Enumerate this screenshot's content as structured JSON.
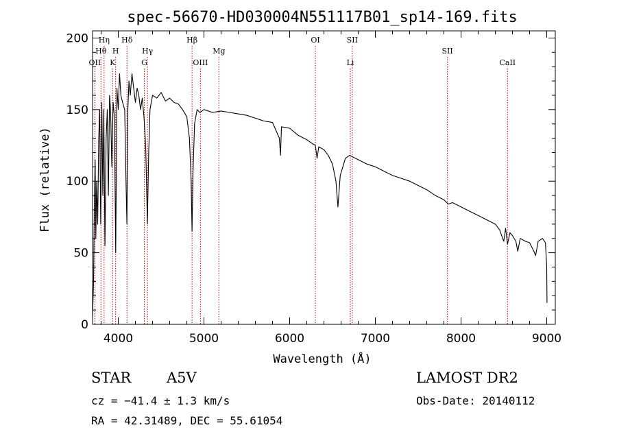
{
  "chart_data": {
    "type": "line",
    "title": "spec-56670-HD030004N551117B01_sp14-169.fits",
    "xlabel": "Wavelength (Å)",
    "ylabel": "Flux (relative)",
    "xlim": [
      3700,
      9100
    ],
    "ylim": [
      0,
      205
    ],
    "xticks": [
      4000,
      5000,
      6000,
      7000,
      8000,
      9000
    ],
    "yticks": [
      0,
      50,
      100,
      150,
      200
    ],
    "line_color": "#000000",
    "marker_color": "#cc0000",
    "series": [
      {
        "points": [
          [
            3700,
            5
          ],
          [
            3712,
            30
          ],
          [
            3720,
            80
          ],
          [
            3730,
            115
          ],
          [
            3738,
            60
          ],
          [
            3748,
            100
          ],
          [
            3760,
            70
          ],
          [
            3772,
            130
          ],
          [
            3783,
            150
          ],
          [
            3795,
            70
          ],
          [
            3808,
            155
          ],
          [
            3820,
            90
          ],
          [
            3830,
            150
          ],
          [
            3845,
            55
          ],
          [
            3858,
            130
          ],
          [
            3872,
            150
          ],
          [
            3885,
            90
          ],
          [
            3898,
            160
          ],
          [
            3910,
            150
          ],
          [
            3925,
            110
          ],
          [
            3940,
            155
          ],
          [
            3955,
            145
          ],
          [
            3970,
            50
          ],
          [
            3985,
            165
          ],
          [
            4000,
            150
          ],
          [
            4015,
            175
          ],
          [
            4030,
            160
          ],
          [
            4050,
            155
          ],
          [
            4075,
            150
          ],
          [
            4090,
            100
          ],
          [
            4101,
            70
          ],
          [
            4112,
            150
          ],
          [
            4125,
            170
          ],
          [
            4140,
            160
          ],
          [
            4160,
            175
          ],
          [
            4180,
            165
          ],
          [
            4200,
            155
          ],
          [
            4220,
            165
          ],
          [
            4240,
            160
          ],
          [
            4260,
            150
          ],
          [
            4280,
            158
          ],
          [
            4300,
            145
          ],
          [
            4320,
            125
          ],
          [
            4340,
            70
          ],
          [
            4355,
            120
          ],
          [
            4370,
            150
          ],
          [
            4400,
            160
          ],
          [
            4450,
            158
          ],
          [
            4500,
            162
          ],
          [
            4550,
            156
          ],
          [
            4600,
            158
          ],
          [
            4650,
            155
          ],
          [
            4700,
            154
          ],
          [
            4750,
            150
          ],
          [
            4800,
            145
          ],
          [
            4830,
            130
          ],
          [
            4850,
            100
          ],
          [
            4861,
            65
          ],
          [
            4872,
            105
          ],
          [
            4890,
            140
          ],
          [
            4920,
            150
          ],
          [
            4950,
            148
          ],
          [
            5000,
            150
          ],
          [
            5100,
            148
          ],
          [
            5200,
            149
          ],
          [
            5300,
            148
          ],
          [
            5400,
            147
          ],
          [
            5500,
            146
          ],
          [
            5600,
            144
          ],
          [
            5700,
            142
          ],
          [
            5800,
            141
          ],
          [
            5880,
            130
          ],
          [
            5893,
            118
          ],
          [
            5905,
            138
          ],
          [
            6000,
            137
          ],
          [
            6100,
            132
          ],
          [
            6200,
            129
          ],
          [
            6270,
            126
          ],
          [
            6300,
            125
          ],
          [
            6320,
            116
          ],
          [
            6340,
            124
          ],
          [
            6400,
            122
          ],
          [
            6450,
            118
          ],
          [
            6500,
            112
          ],
          [
            6540,
            100
          ],
          [
            6563,
            82
          ],
          [
            6590,
            104
          ],
          [
            6650,
            116
          ],
          [
            6700,
            118
          ],
          [
            6800,
            115
          ],
          [
            6900,
            112
          ],
          [
            7000,
            110
          ],
          [
            7100,
            107
          ],
          [
            7200,
            104
          ],
          [
            7300,
            102
          ],
          [
            7400,
            100
          ],
          [
            7500,
            97
          ],
          [
            7600,
            94
          ],
          [
            7700,
            90
          ],
          [
            7800,
            87
          ],
          [
            7850,
            84
          ],
          [
            7900,
            85
          ],
          [
            8000,
            82
          ],
          [
            8100,
            79
          ],
          [
            8200,
            76
          ],
          [
            8300,
            73
          ],
          [
            8400,
            70
          ],
          [
            8450,
            66
          ],
          [
            8498,
            58
          ],
          [
            8520,
            67
          ],
          [
            8542,
            56
          ],
          [
            8570,
            64
          ],
          [
            8600,
            62
          ],
          [
            8640,
            58
          ],
          [
            8662,
            51
          ],
          [
            8690,
            60
          ],
          [
            8750,
            58
          ],
          [
            8800,
            57
          ],
          [
            8850,
            51
          ],
          [
            8870,
            48
          ],
          [
            8900,
            58
          ],
          [
            8950,
            60
          ],
          [
            8985,
            57
          ],
          [
            9000,
            40
          ],
          [
            9003,
            15
          ]
        ]
      }
    ],
    "lines": [
      {
        "label": "OII",
        "x": 3727,
        "row": 3
      },
      {
        "label": "Hθ",
        "x": 3798,
        "row": 2
      },
      {
        "label": "Hη",
        "x": 3835,
        "row": 1
      },
      {
        "label": "K",
        "x": 3934,
        "row": 3
      },
      {
        "label": "H",
        "x": 3969,
        "row": 2
      },
      {
        "label": "Hδ",
        "x": 4102,
        "row": 1
      },
      {
        "label": "G",
        "x": 4304,
        "row": 3
      },
      {
        "label": "Hγ",
        "x": 4341,
        "row": 2
      },
      {
        "label": "Hβ",
        "x": 4861,
        "row": 1
      },
      {
        "label": "OIII",
        "x": 4959,
        "row": 3
      },
      {
        "label": "Mg",
        "x": 5175,
        "row": 2
      },
      {
        "label": "OI",
        "x": 6300,
        "row": 1
      },
      {
        "label": "Li",
        "x": 6708,
        "row": 3
      },
      {
        "label": "SII",
        "x": 6731,
        "row": 1
      },
      {
        "label": "SII",
        "x": 7841,
        "row": 2
      },
      {
        "label": "CaII",
        "x": 8542,
        "row": 3
      }
    ]
  },
  "info": {
    "object_type": "STAR",
    "subclass": "A5V",
    "redshift": "cz = −41.4 ± 1.3 km/s",
    "coords": "RA =  42.31489, DEC =  55.61054",
    "survey": "LAMOST DR2",
    "obs_date": "Obs-Date: 20140112"
  }
}
